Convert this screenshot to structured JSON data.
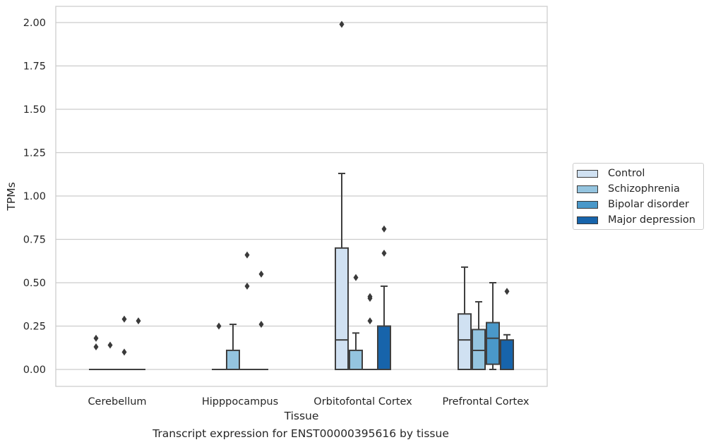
{
  "chart_data": {
    "type": "boxplot",
    "xlabel": "Tissue",
    "ylabel": "TPMs",
    "ylim": [
      -0.1,
      2.1
    ],
    "yticks": [
      0.0,
      0.25,
      0.5,
      0.75,
      1.0,
      1.25,
      1.5,
      1.75,
      2.0
    ],
    "grid": true,
    "legend_position": "right",
    "categories": [
      "Cerebellum",
      "Hipppocampus",
      "Orbitofontal Cortex",
      "Prefrontal Cortex"
    ],
    "series": [
      {
        "name": "Control",
        "color": "#d0e1f2",
        "boxes": [
          {
            "q1": 0.0,
            "median": 0.0,
            "q3": 0.0,
            "whisker_low": 0.0,
            "whisker_high": 0.0,
            "outliers": [
              0.18,
              0.13
            ]
          },
          {
            "q1": 0.0,
            "median": 0.0,
            "q3": 0.0,
            "whisker_low": 0.0,
            "whisker_high": 0.0,
            "outliers": [
              0.25
            ]
          },
          {
            "q1": 0.0,
            "median": 0.17,
            "q3": 0.7,
            "whisker_low": 0.0,
            "whisker_high": 1.13,
            "outliers": [
              1.99
            ]
          },
          {
            "q1": 0.0,
            "median": 0.17,
            "q3": 0.32,
            "whisker_low": 0.0,
            "whisker_high": 0.59,
            "outliers": []
          }
        ]
      },
      {
        "name": "Schizophrenia",
        "color": "#94c4df",
        "boxes": [
          {
            "q1": 0.0,
            "median": 0.0,
            "q3": 0.0,
            "whisker_low": 0.0,
            "whisker_high": 0.0,
            "outliers": [
              0.14
            ]
          },
          {
            "q1": 0.0,
            "median": 0.0,
            "q3": 0.11,
            "whisker_low": 0.0,
            "whisker_high": 0.26,
            "outliers": []
          },
          {
            "q1": 0.0,
            "median": 0.0,
            "q3": 0.11,
            "whisker_low": 0.0,
            "whisker_high": 0.21,
            "outliers": [
              0.53
            ]
          },
          {
            "q1": 0.0,
            "median": 0.11,
            "q3": 0.23,
            "whisker_low": 0.0,
            "whisker_high": 0.39,
            "outliers": []
          }
        ]
      },
      {
        "name": "Bipolar disorder",
        "color": "#4a98c9",
        "boxes": [
          {
            "q1": 0.0,
            "median": 0.0,
            "q3": 0.0,
            "whisker_low": 0.0,
            "whisker_high": 0.0,
            "outliers": [
              0.29,
              0.1
            ]
          },
          {
            "q1": 0.0,
            "median": 0.0,
            "q3": 0.0,
            "whisker_low": 0.0,
            "whisker_high": 0.0,
            "outliers": [
              0.66,
              0.48
            ]
          },
          {
            "q1": 0.0,
            "median": 0.0,
            "q3": 0.0,
            "whisker_low": 0.0,
            "whisker_high": 0.0,
            "outliers": [
              0.42,
              0.41,
              0.28
            ]
          },
          {
            "q1": 0.03,
            "median": 0.18,
            "q3": 0.27,
            "whisker_low": 0.0,
            "whisker_high": 0.5,
            "outliers": []
          }
        ]
      },
      {
        "name": "Major depression",
        "color": "#1764ab",
        "boxes": [
          {
            "q1": 0.0,
            "median": 0.0,
            "q3": 0.0,
            "whisker_low": 0.0,
            "whisker_high": 0.0,
            "outliers": [
              0.28
            ]
          },
          {
            "q1": 0.0,
            "median": 0.0,
            "q3": 0.0,
            "whisker_low": 0.0,
            "whisker_high": 0.0,
            "outliers": [
              0.55,
              0.26
            ]
          },
          {
            "q1": 0.0,
            "median": 0.0,
            "q3": 0.25,
            "whisker_low": 0.0,
            "whisker_high": 0.48,
            "outliers": [
              0.81,
              0.67
            ]
          },
          {
            "q1": 0.0,
            "median": 0.0,
            "q3": 0.17,
            "whisker_low": 0.0,
            "whisker_high": 0.2,
            "outliers": [
              0.45
            ]
          }
        ]
      }
    ]
  },
  "caption": "Transcript expression for ENST00000395616 by tissue"
}
